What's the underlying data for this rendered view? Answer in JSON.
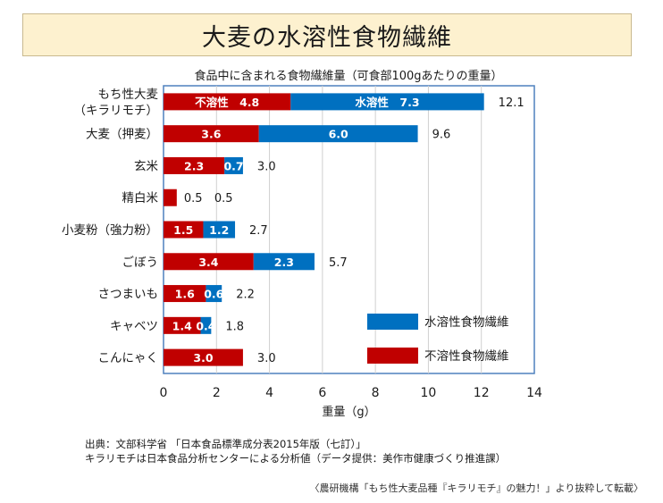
{
  "title": "大麦の水溶性食物繊維",
  "chart_data": {
    "type": "bar",
    "orientation": "horizontal",
    "stacked": true,
    "title": "食品中に含まれる食物繊維量（可食部100gあたりの重量）",
    "xlabel": "重量（g）",
    "ylabel": "",
    "xlim": [
      0,
      14
    ],
    "xticks": [
      "0",
      "2",
      "4",
      "6",
      "8",
      "10",
      "12",
      "14"
    ],
    "grid": true,
    "legend_position": "bottom-right",
    "categories": [
      "もち性大麦\n（キラリモチ）",
      "大麦（押麦）",
      "玄米",
      "精白米",
      "小麦粉（強力粉）",
      "ごぼう",
      "さつまいも",
      "キャベツ",
      "こんにゃく"
    ],
    "series": [
      {
        "name": "不溶性食物繊維",
        "color": "#c00000",
        "values": [
          4.8,
          3.6,
          2.3,
          0.5,
          1.5,
          3.4,
          1.6,
          1.4,
          3.0
        ],
        "labels": [
          "不溶性　4.8",
          "3.6",
          "2.3",
          "",
          "1.5",
          "3.4",
          "1.6",
          "1.4",
          "3.0"
        ]
      },
      {
        "name": "水溶性食物繊維",
        "color": "#0070c0",
        "values": [
          7.3,
          6.0,
          0.7,
          0.0,
          1.2,
          2.3,
          0.6,
          0.4,
          0.0
        ],
        "labels": [
          "水溶性　7.3",
          "6.0",
          "0.7",
          "",
          "1.2",
          "2.3",
          "0.6",
          "0.4",
          ""
        ]
      }
    ],
    "totals": [
      "12.1",
      "9.6",
      "3.0",
      "0.5",
      "2.7",
      "5.7",
      "2.2",
      "1.8",
      "3.0"
    ],
    "outside_labels": [
      "",
      "",
      "",
      "0.5",
      "",
      "",
      "",
      "",
      ""
    ],
    "legend": [
      {
        "label": "水溶性食物繊維",
        "color": "#0070c0"
      },
      {
        "label": "不溶性食物繊維",
        "color": "#c00000"
      }
    ]
  },
  "footer": {
    "source_line1": "出典：文部科学省 「日本食品標準成分表2015年版（七訂）」",
    "source_line2": "キラリモチは日本食品分析センターによる分析値（データ提供：美作市健康づくり推進課）",
    "credit": "〈農研機構「もち性大麦品種『キラリモチ』の魅力！」より抜粋して転載〉"
  }
}
